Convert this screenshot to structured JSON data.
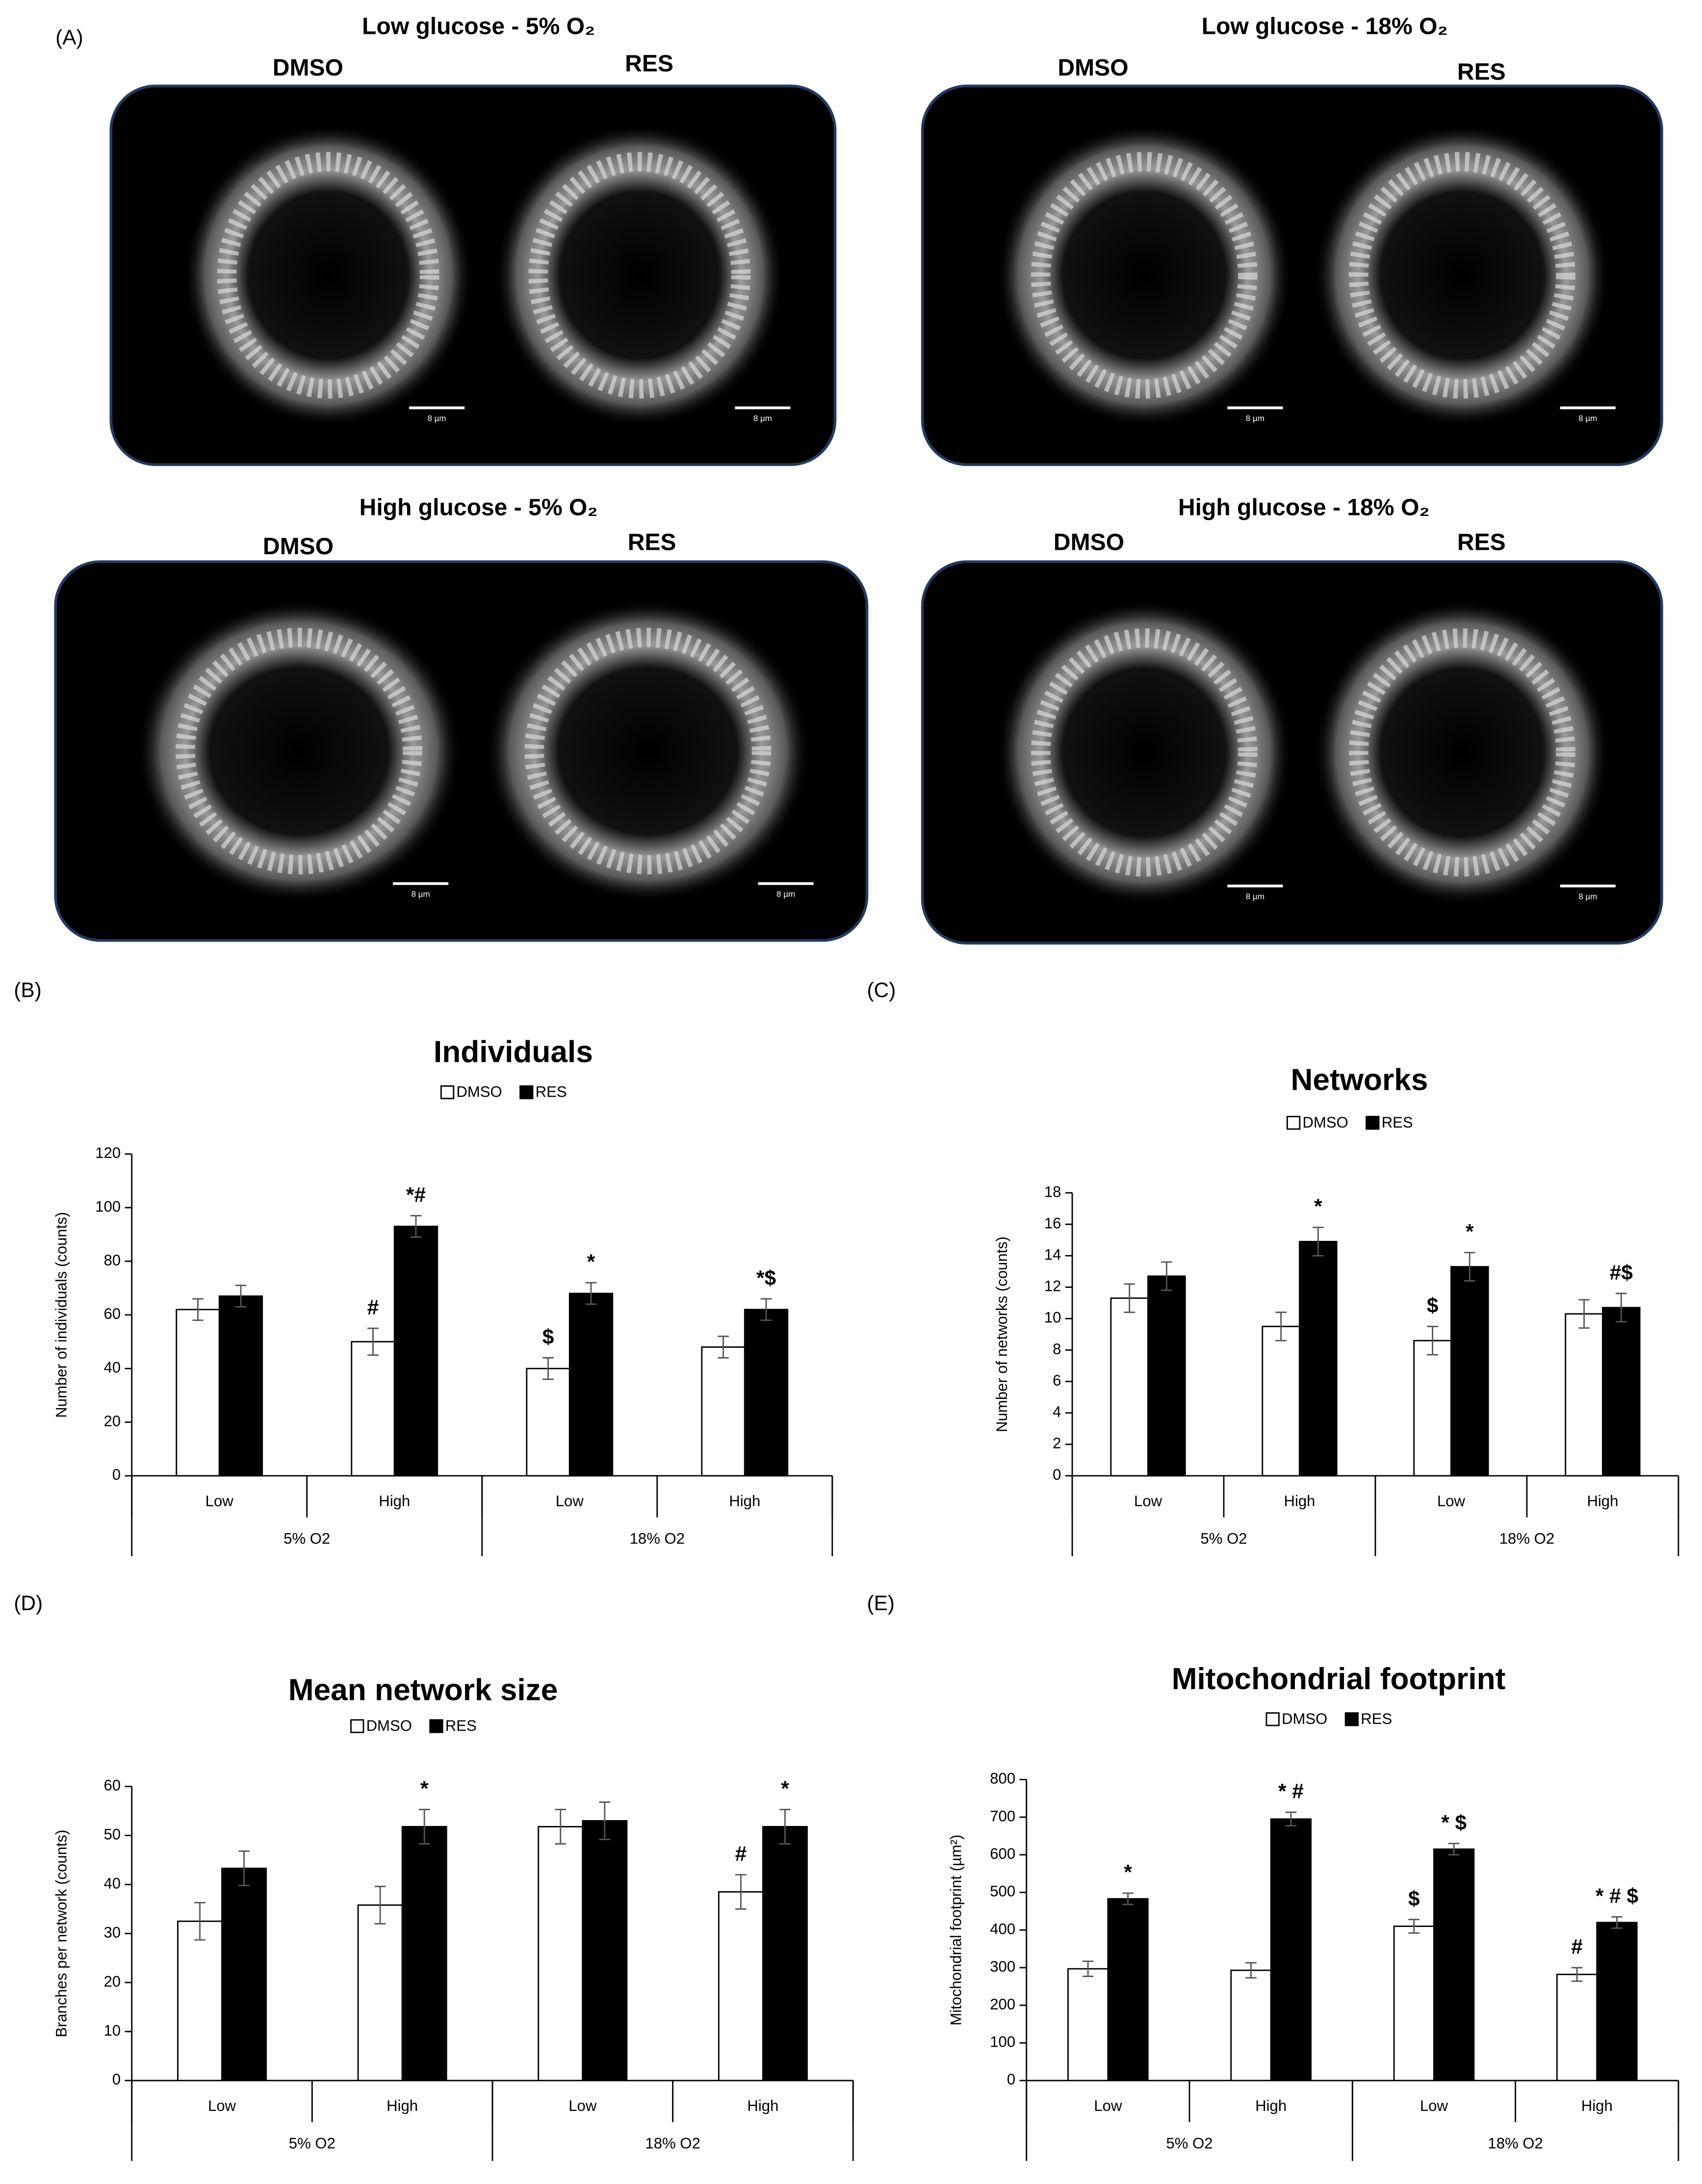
{
  "figure": {
    "panel_labels": [
      "(A)",
      "(B)",
      "(C)",
      "(D)",
      "(E)"
    ],
    "images": [
      {
        "title": "Low glucose - 5% O₂",
        "left": "DMSO",
        "right": "RES",
        "scale_bars": [
          "8 µm",
          "8 µm"
        ]
      },
      {
        "title": "Low glucose - 18% O₂",
        "left": "DMSO",
        "right": "RES",
        "scale_bars": [
          "8 µm",
          "8 µm"
        ]
      },
      {
        "title": "High glucose - 5% O₂",
        "left": "DMSO",
        "right": "RES",
        "scale_bars": [
          "8 µm",
          "8 µm"
        ]
      },
      {
        "title": "High glucose - 18% O₂",
        "left": "DMSO",
        "right": "RES",
        "scale_bars": [
          "8 µm",
          "8 µm"
        ]
      }
    ]
  },
  "chart_data": [
    {
      "type": "bar",
      "title": "Individuals",
      "y_label": "Number of individuals (counts)",
      "categories": [
        "Low",
        "High",
        "Low",
        "High"
      ],
      "category_groups": [
        {
          "label": "5% O2",
          "size": 2
        },
        {
          "label": "18% O2",
          "size": 2
        }
      ],
      "series": [
        {
          "name": "DMSO",
          "color": "#ffffff",
          "values": [
            62,
            50,
            40,
            48
          ],
          "errors": [
            4,
            5,
            4,
            4
          ],
          "annotations": [
            null,
            "#",
            "$",
            null
          ]
        },
        {
          "name": "RES",
          "color": "#000000",
          "values": [
            67,
            93,
            68,
            62
          ],
          "errors": [
            4,
            4,
            4,
            4
          ],
          "annotations": [
            null,
            "*#",
            "*",
            "*$"
          ]
        }
      ],
      "ylim": [
        0,
        120
      ],
      "yticks": [
        0,
        20,
        40,
        60,
        80,
        100,
        120
      ],
      "grid": false,
      "legend": "top"
    },
    {
      "type": "bar",
      "title": "Networks",
      "y_label": "Number of networks (counts)",
      "categories": [
        "Low",
        "High",
        "Low",
        "High"
      ],
      "category_groups": [
        {
          "label": "5% O2",
          "size": 2
        },
        {
          "label": "18% O2",
          "size": 2
        }
      ],
      "series": [
        {
          "name": "DMSO",
          "color": "#ffffff",
          "values": [
            11.3,
            9.5,
            8.6,
            10.3
          ],
          "errors": [
            0.9,
            0.9,
            0.9,
            0.9
          ],
          "annotations": [
            null,
            null,
            "$",
            null
          ]
        },
        {
          "name": "RES",
          "color": "#000000",
          "values": [
            12.7,
            14.9,
            13.3,
            10.7
          ],
          "errors": [
            0.9,
            0.9,
            0.9,
            0.9
          ],
          "annotations": [
            null,
            "*",
            "*",
            "#$"
          ]
        }
      ],
      "ylim": [
        0,
        18
      ],
      "yticks": [
        0,
        2,
        4,
        6,
        8,
        10,
        12,
        14,
        16,
        18
      ],
      "grid": false,
      "legend": "top"
    },
    {
      "type": "bar",
      "title": "Mean network size",
      "y_label": "Branches per network (counts)",
      "categories": [
        "Low",
        "High",
        "Low",
        "High"
      ],
      "category_groups": [
        {
          "label": "5% O2",
          "size": 2
        },
        {
          "label": "18% O2",
          "size": 2
        }
      ],
      "series": [
        {
          "name": "DMSO",
          "color": "#ffffff",
          "values": [
            32.5,
            35.8,
            51.8,
            38.5
          ],
          "errors": [
            3.8,
            3.8,
            3.5,
            3.5
          ],
          "annotations": [
            null,
            null,
            null,
            "#"
          ]
        },
        {
          "name": "RES",
          "color": "#000000",
          "values": [
            43.3,
            51.8,
            53,
            51.8
          ],
          "errors": [
            3.5,
            3.5,
            3.8,
            3.5
          ],
          "annotations": [
            null,
            "*",
            null,
            "*"
          ]
        }
      ],
      "ylim": [
        0,
        60
      ],
      "yticks": [
        0,
        10,
        20,
        30,
        40,
        50,
        60
      ],
      "grid": false,
      "legend": "top"
    },
    {
      "type": "bar",
      "title": "Mitochondrial footprint",
      "y_label": "Mitochondrial footprint (µm²)",
      "categories": [
        "Low",
        "High",
        "Low",
        "High"
      ],
      "category_groups": [
        {
          "label": "5% O2",
          "size": 2
        },
        {
          "label": "18% O2",
          "size": 2
        }
      ],
      "series": [
        {
          "name": "DMSO",
          "color": "#ffffff",
          "values": [
            297,
            293,
            410,
            282
          ],
          "errors": [
            20,
            20,
            18,
            18
          ],
          "annotations": [
            null,
            null,
            "$",
            "#"
          ]
        },
        {
          "name": "RES",
          "color": "#000000",
          "values": [
            483,
            695,
            615,
            420
          ],
          "errors": [
            15,
            18,
            15,
            15
          ],
          "annotations": [
            "*",
            "* #",
            "* $",
            "* # $"
          ]
        }
      ],
      "ylim": [
        0,
        800
      ],
      "yticks": [
        0,
        100,
        200,
        300,
        400,
        500,
        600,
        700,
        800
      ],
      "grid": false,
      "legend": "top"
    }
  ]
}
